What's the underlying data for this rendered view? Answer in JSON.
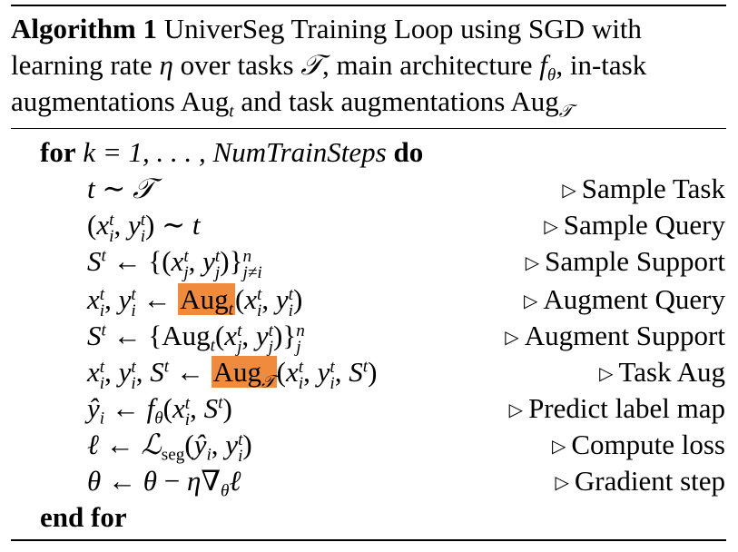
{
  "caption": {
    "label": "Algorithm 1",
    "title": "UniverSeg Training Loop using SGD with learning rate",
    "eta": "η",
    "over_tasks": "over tasks",
    "tasks_symbol": "𝒯",
    "main_arch": ", main architecture",
    "f": "f",
    "theta": "θ",
    "in_task": ", in-task augmentations",
    "aug": "Aug",
    "sub_t": "t",
    "and_task": "and task augmentations",
    "sub_T": "𝒯"
  },
  "loop": {
    "for_kw": "for",
    "header": "k = 1, . . . , NumTrainSteps",
    "do_kw": "do",
    "end_kw": "end for"
  },
  "comment_marker": "▷",
  "comments": [
    "Sample Task",
    "Sample Query",
    "Sample Support",
    "Augment Query",
    "Augment Support",
    "Task Aug",
    "Predict label map",
    "Compute loss",
    "Gradient step"
  ],
  "highlight_color": "#f08a3c"
}
